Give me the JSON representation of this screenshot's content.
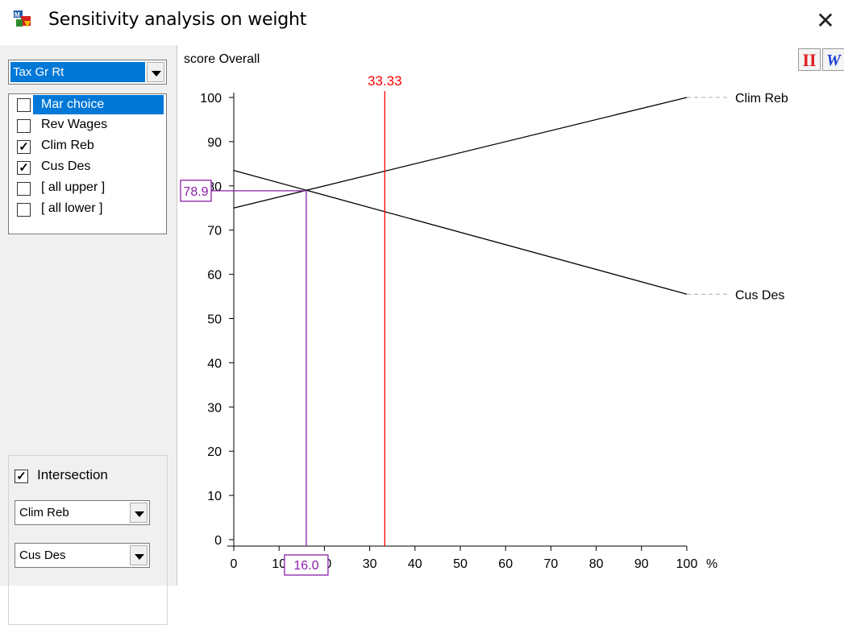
{
  "window": {
    "title": "Sensitivity analysis on weight",
    "close_glyph": "✕",
    "icon": "app-icon"
  },
  "criterion_select": {
    "value": "Tax Gr Rt"
  },
  "alternatives": [
    {
      "label": "Mar choice",
      "checked": false,
      "highlighted": true
    },
    {
      "label": "Rev Wages",
      "checked": false,
      "highlighted": false
    },
    {
      "label": "Clim Reb",
      "checked": true,
      "highlighted": false
    },
    {
      "label": "Cus Des",
      "checked": true,
      "highlighted": false
    },
    {
      "label": "[ all upper ]",
      "checked": false,
      "highlighted": false
    },
    {
      "label": "[ all lower ]",
      "checked": false,
      "highlighted": false
    }
  ],
  "intersection": {
    "label": "Intersection",
    "checked": true,
    "select_a": "Clim Reb",
    "select_b": "Cus Des"
  },
  "toolbar_icons": {
    "ii_label": "II",
    "w_label": "W"
  },
  "chart_data": {
    "type": "line",
    "ylabel": "score Overall",
    "x_unit": "%",
    "xlim": [
      0,
      100
    ],
    "ylim": [
      0,
      100
    ],
    "x_ticks": [
      "0",
      "10",
      "20",
      "30",
      "40",
      "50",
      "60",
      "70",
      "80",
      "90",
      "100"
    ],
    "y_ticks": [
      "0",
      "10",
      "20",
      "30",
      "40",
      "50",
      "60",
      "70",
      "80",
      "90",
      "100"
    ],
    "series": [
      {
        "name": "Clim Reb",
        "x": [
          0,
          100
        ],
        "y": [
          75.0,
          100.0
        ],
        "color": "#000000"
      },
      {
        "name": "Cus Des",
        "x": [
          0,
          100
        ],
        "y": [
          83.5,
          55.5
        ],
        "color": "#000000"
      }
    ],
    "current_weight": {
      "x": 33.33,
      "label": "33.33",
      "color": "#ff0000"
    },
    "intersection_point": {
      "x": 16.0,
      "y": 78.9,
      "x_label": "16.0",
      "y_label": "78.9",
      "color": "#8b1fa8"
    }
  }
}
